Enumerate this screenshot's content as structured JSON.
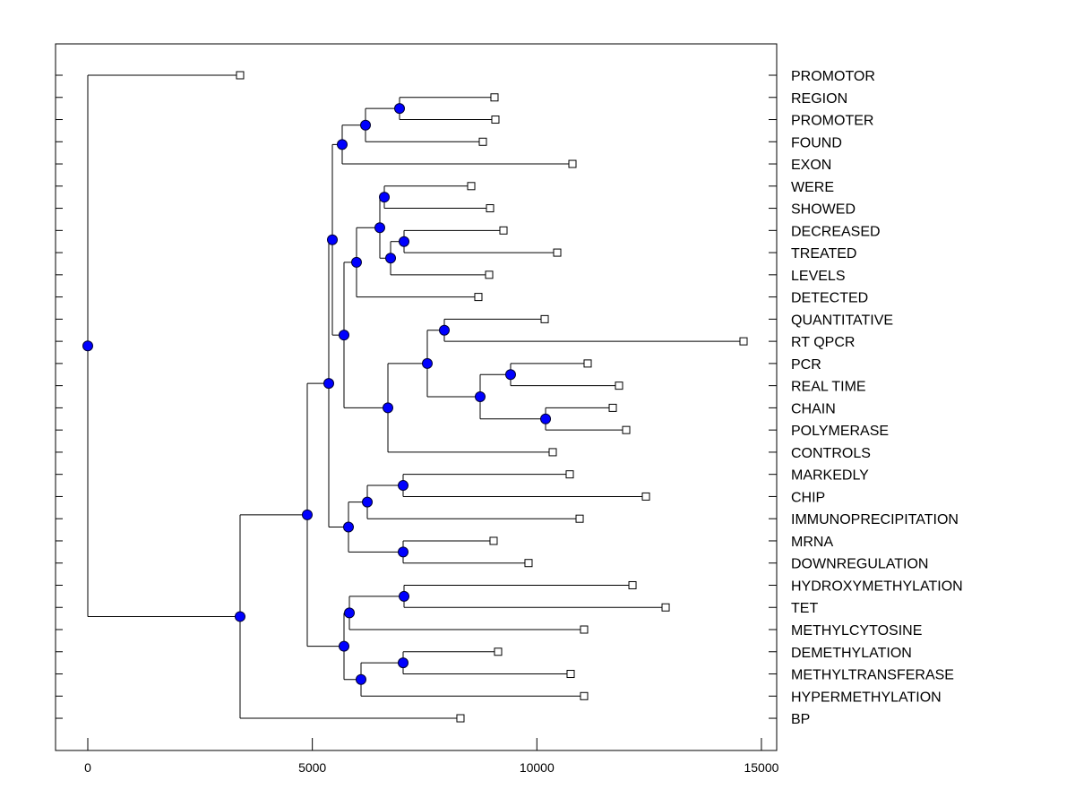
{
  "chart_data": {
    "type": "dendrogram",
    "title": "",
    "xlabel": "",
    "ylabel": "",
    "xlim": [
      -700,
      15350
    ],
    "xticks": [
      0,
      5000,
      10000,
      15000
    ],
    "xtick_labels": [
      "0",
      "5000",
      "10000",
      "15000"
    ],
    "node_color": "#0000ff",
    "leaf_marker_color": "#ffffff",
    "labels": [
      "PROMOTOR",
      "REGION",
      "PROMOTER",
      "FOUND",
      "EXON",
      "WERE",
      "SHOWED",
      "DECREASED",
      "TREATED",
      "LEVELS",
      "DETECTED",
      "QUANTITATIVE",
      "RT QPCR",
      "PCR",
      "REAL TIME",
      "CHAIN",
      "POLYMERASE",
      "CONTROLS",
      "MARKEDLY",
      "CHIP",
      "IMMUNOPRECIPITATION",
      "MRNA",
      "DOWNREGULATION",
      "HYDROXYMETHYLATION",
      "TET",
      "METHYLCYTOSINE",
      "DEMETHYLATION",
      "METHYLTRANSFERASE",
      "HYPERMETHYLATION",
      "BP"
    ],
    "leaf_values": [
      3391,
      9056,
      9076,
      8797,
      10792,
      8538,
      8957,
      9256,
      10453,
      8937,
      8697,
      10174,
      14602,
      11131,
      11829,
      11690,
      11989,
      10353,
      10732,
      12428,
      10952,
      9036,
      9814,
      12129,
      12867,
      11051,
      9136,
      10752,
      11051,
      8298
    ],
    "tree": {
      "h": 0,
      "c": [
        0,
        {
          "h": 3391,
          "c": [
            {
              "h": 4887,
              "c": [
                {
                  "h": 5366,
                  "c": [
                    {
                      "h": 5446,
                      "c": [
                        {
                          "h": 5665,
                          "c": [
                            {
                              "h": 6184,
                              "c": [
                                {
                                  "h": 6942,
                                  "c": [
                                    1,
                                    2
                                  ]
                                },
                                3
                              ]
                            },
                            4
                          ]
                        },
                        {
                          "h": 5705,
                          "c": [
                            {
                              "h": 5984,
                              "c": [
                                {
                                  "h": 6503,
                                  "c": [
                                    {
                                      "h": 6603,
                                      "c": [
                                        5,
                                        6
                                      ]
                                    },
                                    {
                                      "h": 6743,
                                      "c": [
                                        {
                                          "h": 7042,
                                          "c": [
                                            7,
                                            8
                                          ]
                                        },
                                        9
                                      ]
                                    }
                                  ]
                                },
                                10
                              ]
                            },
                            {
                              "h": 6683,
                              "c": [
                                {
                                  "h": 7560,
                                  "c": [
                                    {
                                      "h": 7939,
                                      "c": [
                                        11,
                                        12
                                      ]
                                    },
                                    {
                                      "h": 8737,
                                      "c": [
                                        {
                                          "h": 9415,
                                          "c": [
                                            13,
                                            14
                                          ]
                                        },
                                        {
                                          "h": 10194,
                                          "c": [
                                            15,
                                            16
                                          ]
                                        }
                                      ]
                                    }
                                  ]
                                },
                                17
                              ]
                            }
                          ]
                        }
                      ]
                    },
                    {
                      "h": 5805,
                      "c": [
                        {
                          "h": 6224,
                          "c": [
                            {
                              "h": 7022,
                              "c": [
                                18,
                                19
                              ]
                            },
                            20
                          ]
                        },
                        {
                          "h": 7022,
                          "c": [
                            21,
                            22
                          ]
                        }
                      ]
                    }
                  ]
                },
                {
                  "h": 5705,
                  "c": [
                    {
                      "h": 5825,
                      "c": [
                        {
                          "h": 7042,
                          "c": [
                            23,
                            24
                          ]
                        },
                        25
                      ]
                    },
                    {
                      "h": 6084,
                      "c": [
                        {
                          "h": 7022,
                          "c": [
                            26,
                            27
                          ]
                        },
                        28
                      ]
                    }
                  ]
                }
              ]
            },
            29
          ]
        }
      ]
    }
  }
}
